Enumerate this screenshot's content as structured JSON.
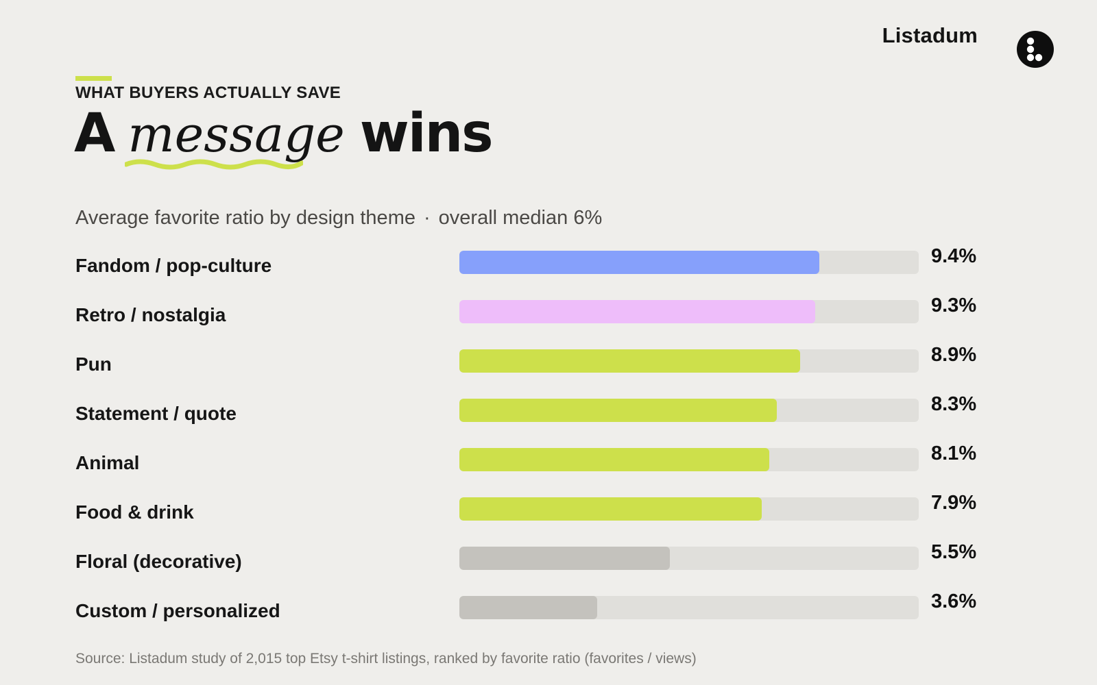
{
  "brand": {
    "name": "Listadum"
  },
  "header": {
    "eyebrow": "WHAT BUYERS ACTUALLY SAVE",
    "headline_pre": "A",
    "headline_em": "message",
    "headline_post": "wins"
  },
  "subtitle": {
    "left": "Average favorite ratio by design theme",
    "separator": "·",
    "right": "overall median 6%"
  },
  "source": "Source: Listadum study of 2,015 top Etsy t-shirt listings, ranked by favorite ratio (favorites / views)",
  "colors": {
    "accent": "#cde04b",
    "blue": "#86a0fb",
    "pink": "#eebdfa",
    "lime": "#cde04b",
    "gray": "#c4c2bd",
    "track": "#e0dfdb"
  },
  "icons": {
    "logo": "dots-logo-icon"
  },
  "chart_data": {
    "type": "bar",
    "orientation": "horizontal",
    "categories": [
      "Fandom / pop-culture",
      "Retro / nostalgia",
      "Pun",
      "Statement / quote",
      "Animal",
      "Food & drink",
      "Floral (decorative)",
      "Custom / personalized"
    ],
    "values": [
      9.4,
      9.3,
      8.9,
      8.3,
      8.1,
      7.9,
      5.5,
      3.6
    ],
    "value_labels": [
      "9.4%",
      "9.3%",
      "8.9%",
      "8.3%",
      "8.1%",
      "7.9%",
      "5.5%",
      "3.6%"
    ],
    "bar_colors": [
      "blue",
      "pink",
      "lime",
      "lime",
      "lime",
      "lime",
      "gray",
      "gray"
    ],
    "xlim": [
      0,
      12
    ],
    "unit": "%",
    "grid": false,
    "legend": "none"
  }
}
